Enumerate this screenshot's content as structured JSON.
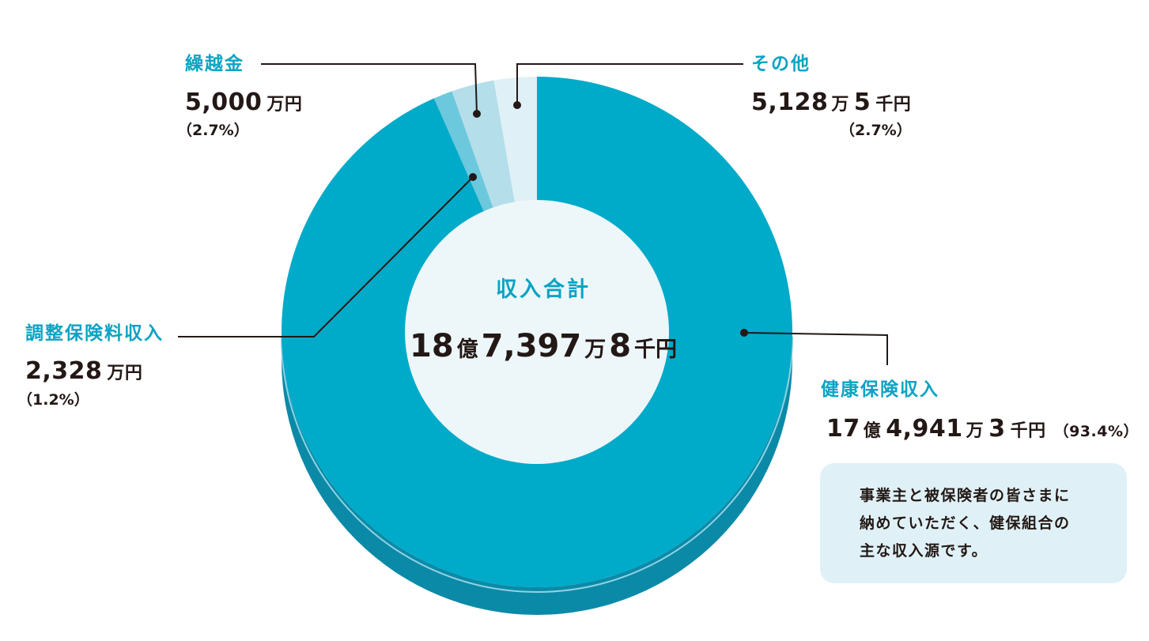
{
  "chart_data": {
    "type": "pie",
    "title": "収入合計",
    "total": {
      "number1": "18",
      "unit1": "億",
      "number2": "7,397",
      "unit2": "万",
      "number3": "8",
      "unit3": "千円"
    },
    "slices": [
      {
        "name": "健康保険収入",
        "percent": 93.4,
        "amount": {
          "oku": "17",
          "man": "4,941",
          "sen": "3",
          "unit": "千円"
        },
        "pct_label": "（93.4%）",
        "color": "#00aac9"
      },
      {
        "name": "調整保険料収入",
        "percent": 1.2,
        "amount": {
          "man": "2,328",
          "unit": "万円"
        },
        "pct_label": "（1.2%）",
        "color": "#6cc8dd"
      },
      {
        "name": "繰越金",
        "percent": 2.7,
        "amount": {
          "man": "5,000",
          "unit": "万円"
        },
        "pct_label": "（2.7%）",
        "color": "#b3deea"
      },
      {
        "name": "その他",
        "percent": 2.7,
        "amount": {
          "man": "5,128",
          "sen": "5",
          "unit": "千円"
        },
        "pct_label": "（2.7%）",
        "color": "#dff1f6"
      }
    ]
  },
  "note": {
    "text": "事業主と被保険者の皆さまに\n納めていただく、健保組合の\n主な収入源です。"
  },
  "colors": {
    "accent": "#0ba3c4",
    "side": "#0b8aa7",
    "inner": "#edf7fa",
    "text": "#231815"
  },
  "units": {
    "oku": "億",
    "man": "万",
    "sen": "千円",
    "manyen": "万円"
  }
}
